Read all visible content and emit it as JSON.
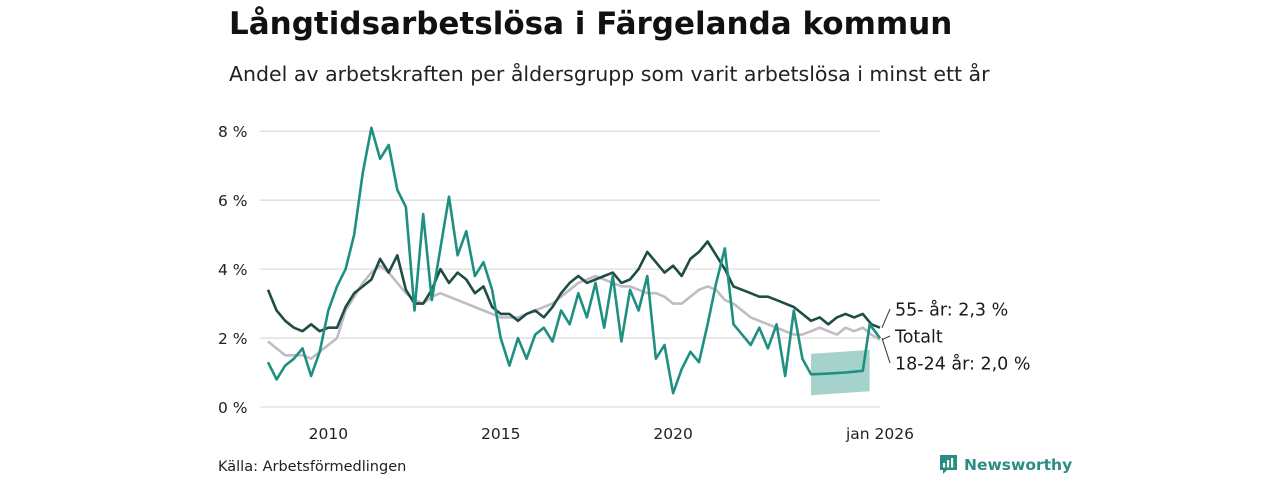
{
  "chart_data": {
    "type": "line",
    "title": "Långtidsarbetslösa i Färgelanda kommun",
    "subtitle": "Andel av arbetskraften per åldersgrupp som varit arbetslösa i minst ett år",
    "ylim": [
      0,
      8.5
    ],
    "y_ticks": [
      {
        "value": 0,
        "label": "0 %"
      },
      {
        "value": 2,
        "label": "2 %"
      },
      {
        "value": 4,
        "label": "4 %"
      },
      {
        "value": 6,
        "label": "6 %"
      },
      {
        "value": 8,
        "label": "8 %"
      }
    ],
    "x_range": [
      2008.25,
      2026.0
    ],
    "x_ticks": [
      {
        "value": 2010,
        "label": "2010"
      },
      {
        "value": 2015,
        "label": "2015"
      },
      {
        "value": 2020,
        "label": "2020"
      },
      {
        "value": 2026.0,
        "label": "jan 2026"
      }
    ],
    "source": "Källa: Arbetsförmedlingen",
    "series": [
      {
        "name": "Totalt",
        "label": "Totalt",
        "color": "#bfbcc5",
        "points": [
          [
            2008.25,
            1.9
          ],
          [
            2008.5,
            1.7
          ],
          [
            2008.75,
            1.5
          ],
          [
            2009.0,
            1.5
          ],
          [
            2009.25,
            1.5
          ],
          [
            2009.5,
            1.4
          ],
          [
            2009.75,
            1.6
          ],
          [
            2010.0,
            1.8
          ],
          [
            2010.25,
            2.0
          ],
          [
            2010.5,
            2.8
          ],
          [
            2010.75,
            3.2
          ],
          [
            2011.0,
            3.6
          ],
          [
            2011.25,
            3.9
          ],
          [
            2011.5,
            4.1
          ],
          [
            2011.75,
            3.9
          ],
          [
            2012.0,
            3.6
          ],
          [
            2012.25,
            3.3
          ],
          [
            2012.5,
            3.1
          ],
          [
            2012.75,
            3.0
          ],
          [
            2013.0,
            3.2
          ],
          [
            2013.25,
            3.3
          ],
          [
            2013.5,
            3.2
          ],
          [
            2013.75,
            3.1
          ],
          [
            2014.0,
            3.0
          ],
          [
            2014.25,
            2.9
          ],
          [
            2014.5,
            2.8
          ],
          [
            2014.75,
            2.7
          ],
          [
            2015.0,
            2.6
          ],
          [
            2015.25,
            2.6
          ],
          [
            2015.5,
            2.6
          ],
          [
            2015.75,
            2.7
          ],
          [
            2016.0,
            2.8
          ],
          [
            2016.25,
            2.9
          ],
          [
            2016.5,
            3.0
          ],
          [
            2016.75,
            3.2
          ],
          [
            2017.0,
            3.4
          ],
          [
            2017.25,
            3.6
          ],
          [
            2017.5,
            3.7
          ],
          [
            2017.75,
            3.8
          ],
          [
            2018.0,
            3.7
          ],
          [
            2018.25,
            3.6
          ],
          [
            2018.5,
            3.5
          ],
          [
            2018.75,
            3.5
          ],
          [
            2019.0,
            3.4
          ],
          [
            2019.25,
            3.3
          ],
          [
            2019.5,
            3.3
          ],
          [
            2019.75,
            3.2
          ],
          [
            2020.0,
            3.0
          ],
          [
            2020.25,
            3.0
          ],
          [
            2020.5,
            3.2
          ],
          [
            2020.75,
            3.4
          ],
          [
            2021.0,
            3.5
          ],
          [
            2021.25,
            3.4
          ],
          [
            2021.5,
            3.1
          ],
          [
            2021.75,
            3.0
          ],
          [
            2022.0,
            2.8
          ],
          [
            2022.25,
            2.6
          ],
          [
            2022.5,
            2.5
          ],
          [
            2022.75,
            2.4
          ],
          [
            2023.0,
            2.3
          ],
          [
            2023.25,
            2.2
          ],
          [
            2023.5,
            2.1
          ],
          [
            2023.75,
            2.1
          ],
          [
            2024.0,
            2.2
          ],
          [
            2024.25,
            2.3
          ],
          [
            2024.5,
            2.2
          ],
          [
            2024.75,
            2.1
          ],
          [
            2025.0,
            2.3
          ],
          [
            2025.25,
            2.2
          ],
          [
            2025.5,
            2.3
          ],
          [
            2025.75,
            2.1
          ],
          [
            2026.0,
            1.95
          ]
        ]
      },
      {
        "name": "55- år",
        "label": "55- år: 2,3 %",
        "color": "#1e4d45",
        "points": [
          [
            2008.25,
            3.4
          ],
          [
            2008.5,
            2.8
          ],
          [
            2008.75,
            2.5
          ],
          [
            2009.0,
            2.3
          ],
          [
            2009.25,
            2.2
          ],
          [
            2009.5,
            2.4
          ],
          [
            2009.75,
            2.2
          ],
          [
            2010.0,
            2.3
          ],
          [
            2010.25,
            2.3
          ],
          [
            2010.5,
            2.9
          ],
          [
            2010.75,
            3.3
          ],
          [
            2011.0,
            3.5
          ],
          [
            2011.25,
            3.7
          ],
          [
            2011.5,
            4.3
          ],
          [
            2011.75,
            3.9
          ],
          [
            2012.0,
            4.4
          ],
          [
            2012.25,
            3.4
          ],
          [
            2012.5,
            3.0
          ],
          [
            2012.75,
            3.0
          ],
          [
            2013.0,
            3.4
          ],
          [
            2013.25,
            4.0
          ],
          [
            2013.5,
            3.6
          ],
          [
            2013.75,
            3.9
          ],
          [
            2014.0,
            3.7
          ],
          [
            2014.25,
            3.3
          ],
          [
            2014.5,
            3.5
          ],
          [
            2014.75,
            2.9
          ],
          [
            2015.0,
            2.7
          ],
          [
            2015.25,
            2.7
          ],
          [
            2015.5,
            2.5
          ],
          [
            2015.75,
            2.7
          ],
          [
            2016.0,
            2.8
          ],
          [
            2016.25,
            2.6
          ],
          [
            2016.5,
            2.9
          ],
          [
            2016.75,
            3.3
          ],
          [
            2017.0,
            3.6
          ],
          [
            2017.25,
            3.8
          ],
          [
            2017.5,
            3.6
          ],
          [
            2017.75,
            3.7
          ],
          [
            2018.0,
            3.8
          ],
          [
            2018.25,
            3.9
          ],
          [
            2018.5,
            3.6
          ],
          [
            2018.75,
            3.7
          ],
          [
            2019.0,
            4.0
          ],
          [
            2019.25,
            4.5
          ],
          [
            2019.5,
            4.2
          ],
          [
            2019.75,
            3.9
          ],
          [
            2020.0,
            4.1
          ],
          [
            2020.25,
            3.8
          ],
          [
            2020.5,
            4.3
          ],
          [
            2020.75,
            4.5
          ],
          [
            2021.0,
            4.8
          ],
          [
            2021.25,
            4.4
          ],
          [
            2021.5,
            4.0
          ],
          [
            2021.75,
            3.5
          ],
          [
            2022.0,
            3.4
          ],
          [
            2022.25,
            3.3
          ],
          [
            2022.5,
            3.2
          ],
          [
            2022.75,
            3.2
          ],
          [
            2023.0,
            3.1
          ],
          [
            2023.25,
            3.0
          ],
          [
            2023.5,
            2.9
          ],
          [
            2023.75,
            2.7
          ],
          [
            2024.0,
            2.5
          ],
          [
            2024.25,
            2.6
          ],
          [
            2024.5,
            2.4
          ],
          [
            2024.75,
            2.6
          ],
          [
            2025.0,
            2.7
          ],
          [
            2025.25,
            2.6
          ],
          [
            2025.5,
            2.7
          ],
          [
            2025.75,
            2.4
          ],
          [
            2026.0,
            2.3
          ]
        ]
      },
      {
        "name": "18-24 år",
        "label": "18-24 år: 2,0 %",
        "color": "#1f9080",
        "points": [
          [
            2008.25,
            1.3
          ],
          [
            2008.5,
            0.8
          ],
          [
            2008.75,
            1.2
          ],
          [
            2009.0,
            1.4
          ],
          [
            2009.25,
            1.7
          ],
          [
            2009.5,
            0.9
          ],
          [
            2009.75,
            1.6
          ],
          [
            2010.0,
            2.8
          ],
          [
            2010.25,
            3.5
          ],
          [
            2010.5,
            4.0
          ],
          [
            2010.75,
            5.0
          ],
          [
            2011.0,
            6.8
          ],
          [
            2011.25,
            8.1
          ],
          [
            2011.5,
            7.2
          ],
          [
            2011.75,
            7.6
          ],
          [
            2012.0,
            6.3
          ],
          [
            2012.25,
            5.8
          ],
          [
            2012.5,
            2.8
          ],
          [
            2012.75,
            5.6
          ],
          [
            2013.0,
            3.1
          ],
          [
            2013.25,
            4.6
          ],
          [
            2013.5,
            6.1
          ],
          [
            2013.75,
            4.4
          ],
          [
            2014.0,
            5.1
          ],
          [
            2014.25,
            3.8
          ],
          [
            2014.5,
            4.2
          ],
          [
            2014.75,
            3.4
          ],
          [
            2015.0,
            2.0
          ],
          [
            2015.25,
            1.2
          ],
          [
            2015.5,
            2.0
          ],
          [
            2015.75,
            1.4
          ],
          [
            2016.0,
            2.1
          ],
          [
            2016.25,
            2.3
          ],
          [
            2016.5,
            1.9
          ],
          [
            2016.75,
            2.8
          ],
          [
            2017.0,
            2.4
          ],
          [
            2017.25,
            3.3
          ],
          [
            2017.5,
            2.6
          ],
          [
            2017.75,
            3.6
          ],
          [
            2018.0,
            2.3
          ],
          [
            2018.25,
            3.8
          ],
          [
            2018.5,
            1.9
          ],
          [
            2018.75,
            3.4
          ],
          [
            2019.0,
            2.8
          ],
          [
            2019.25,
            3.8
          ],
          [
            2019.5,
            1.4
          ],
          [
            2019.75,
            1.8
          ],
          [
            2020.0,
            0.4
          ],
          [
            2020.25,
            1.1
          ],
          [
            2020.5,
            1.6
          ],
          [
            2020.75,
            1.3
          ],
          [
            2021.0,
            2.4
          ],
          [
            2021.25,
            3.6
          ],
          [
            2021.5,
            4.6
          ],
          [
            2021.75,
            2.4
          ],
          [
            2022.0,
            2.1
          ],
          [
            2022.25,
            1.8
          ],
          [
            2022.5,
            2.3
          ],
          [
            2022.75,
            1.7
          ],
          [
            2023.0,
            2.4
          ],
          [
            2023.25,
            0.9
          ],
          [
            2023.5,
            2.8
          ],
          [
            2023.75,
            1.4
          ],
          [
            2024.0,
            0.95
          ],
          [
            2024.5,
            0.97
          ],
          [
            2025.0,
            1.0
          ],
          [
            2025.5,
            1.05
          ],
          [
            2025.7,
            2.4
          ],
          [
            2026.0,
            2.0
          ]
        ],
        "band": {
          "from": 2024.0,
          "to": 2025.7,
          "lower": 0.4,
          "upper": 1.6
        }
      }
    ]
  },
  "brand": {
    "name": "Newsworthy"
  }
}
